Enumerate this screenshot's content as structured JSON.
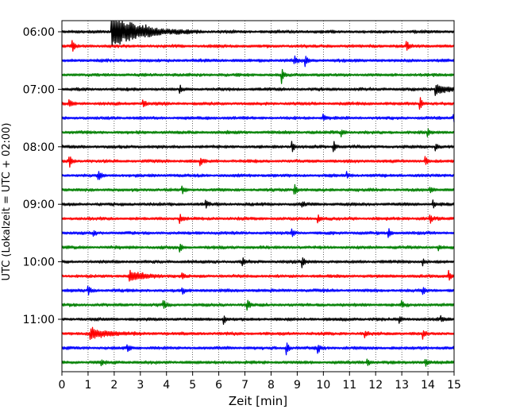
{
  "chart_data": {
    "type": "line",
    "title": "",
    "xlabel": "Zeit  [min]",
    "ylabel": "UTC (Lokalzeit = UTC + 02:00)",
    "xlim": [
      0,
      15
    ],
    "x_ticks": [
      0,
      1,
      2,
      3,
      4,
      5,
      6,
      7,
      8,
      9,
      10,
      11,
      12,
      13,
      14,
      15
    ],
    "y_tick_labels": [
      "06:00",
      "07:00",
      "08:00",
      "09:00",
      "10:00",
      "11:00"
    ],
    "grid": "vertical dotted",
    "trace_color_cycle": [
      "#000000",
      "#ff0000",
      "#0000ff",
      "#008000"
    ],
    "trace_interval_min": 15,
    "trace_count": 24,
    "series": [
      {
        "trace_start": "06:00",
        "color": "#000000",
        "events": [
          {
            "t": 1.9,
            "amp": 1.0,
            "decay": 0.9
          },
          {
            "t": 3.2,
            "amp": 0.12
          }
        ]
      },
      {
        "trace_start": "06:15",
        "color": "#ff0000",
        "events": [
          {
            "t": 0.4,
            "amp": 0.35
          },
          {
            "t": 13.2,
            "amp": 0.3
          }
        ]
      },
      {
        "trace_start": "06:30",
        "color": "#0000ff",
        "events": [
          {
            "t": 8.9,
            "amp": 0.25
          },
          {
            "t": 9.3,
            "amp": 0.3
          }
        ]
      },
      {
        "trace_start": "06:45",
        "color": "#008000",
        "events": [
          {
            "t": 8.4,
            "amp": 0.4
          }
        ]
      },
      {
        "trace_start": "07:00",
        "color": "#000000",
        "events": [
          {
            "t": 4.5,
            "amp": 0.25
          },
          {
            "t": 14.3,
            "amp": 0.3,
            "decay": 0.4
          }
        ]
      },
      {
        "trace_start": "07:15",
        "color": "#ff0000",
        "events": [
          {
            "t": 0.3,
            "amp": 0.2
          },
          {
            "t": 3.1,
            "amp": 0.3
          },
          {
            "t": 13.7,
            "amp": 0.35
          }
        ]
      },
      {
        "trace_start": "07:30",
        "color": "#0000ff",
        "events": [
          {
            "t": 10.0,
            "amp": 0.22
          },
          {
            "t": 15.0,
            "amp": 0.2
          }
        ]
      },
      {
        "trace_start": "07:45",
        "color": "#008000",
        "events": [
          {
            "t": 10.7,
            "amp": 0.2
          },
          {
            "t": 14.0,
            "amp": 0.18
          }
        ]
      },
      {
        "trace_start": "08:00",
        "color": "#000000",
        "events": [
          {
            "t": 8.8,
            "amp": 0.32
          },
          {
            "t": 10.4,
            "amp": 0.33
          },
          {
            "t": 14.3,
            "amp": 0.18
          }
        ]
      },
      {
        "trace_start": "08:15",
        "color": "#ff0000",
        "events": [
          {
            "t": 0.3,
            "amp": 0.28
          },
          {
            "t": 5.3,
            "amp": 0.25
          },
          {
            "t": 13.9,
            "amp": 0.25
          }
        ]
      },
      {
        "trace_start": "08:30",
        "color": "#0000ff",
        "events": [
          {
            "t": 1.4,
            "amp": 0.28
          },
          {
            "t": 10.9,
            "amp": 0.18
          }
        ]
      },
      {
        "trace_start": "08:45",
        "color": "#008000",
        "events": [
          {
            "t": 4.6,
            "amp": 0.22
          },
          {
            "t": 8.9,
            "amp": 0.35
          },
          {
            "t": 14.1,
            "amp": 0.2
          }
        ]
      },
      {
        "trace_start": "09:00",
        "color": "#000000",
        "events": [
          {
            "t": 5.5,
            "amp": 0.25
          },
          {
            "t": 9.2,
            "amp": 0.22
          },
          {
            "t": 14.2,
            "amp": 0.2
          }
        ]
      },
      {
        "trace_start": "09:15",
        "color": "#ff0000",
        "events": [
          {
            "t": 4.5,
            "amp": 0.3
          },
          {
            "t": 9.8,
            "amp": 0.2
          },
          {
            "t": 14.1,
            "amp": 0.18
          }
        ]
      },
      {
        "trace_start": "09:30",
        "color": "#0000ff",
        "events": [
          {
            "t": 1.2,
            "amp": 0.2
          },
          {
            "t": 8.8,
            "amp": 0.25
          },
          {
            "t": 12.5,
            "amp": 0.28
          }
        ]
      },
      {
        "trace_start": "09:45",
        "color": "#008000",
        "events": [
          {
            "t": 4.5,
            "amp": 0.28
          },
          {
            "t": 14.4,
            "amp": 0.2
          }
        ]
      },
      {
        "trace_start": "10:00",
        "color": "#000000",
        "events": [
          {
            "t": 6.9,
            "amp": 0.3
          },
          {
            "t": 9.2,
            "amp": 0.28
          },
          {
            "t": 13.8,
            "amp": 0.22
          }
        ]
      },
      {
        "trace_start": "10:15",
        "color": "#ff0000",
        "events": [
          {
            "t": 2.6,
            "amp": 0.3,
            "decay": 0.5
          },
          {
            "t": 4.6,
            "amp": 0.2
          },
          {
            "t": 14.8,
            "amp": 0.3
          }
        ]
      },
      {
        "trace_start": "10:30",
        "color": "#0000ff",
        "events": [
          {
            "t": 1.0,
            "amp": 0.25
          },
          {
            "t": 4.6,
            "amp": 0.2
          },
          {
            "t": 13.8,
            "amp": 0.28
          }
        ]
      },
      {
        "trace_start": "10:45",
        "color": "#008000",
        "events": [
          {
            "t": 3.9,
            "amp": 0.22
          },
          {
            "t": 7.1,
            "amp": 0.3
          },
          {
            "t": 13.0,
            "amp": 0.22
          }
        ]
      },
      {
        "trace_start": "11:00",
        "color": "#000000",
        "events": [
          {
            "t": 6.2,
            "amp": 0.28
          },
          {
            "t": 12.9,
            "amp": 0.25
          },
          {
            "t": 14.5,
            "amp": 0.15
          }
        ]
      },
      {
        "trace_start": "11:15",
        "color": "#ff0000",
        "events": [
          {
            "t": 1.1,
            "amp": 0.35,
            "decay": 0.5
          },
          {
            "t": 11.6,
            "amp": 0.2
          },
          {
            "t": 13.8,
            "amp": 0.3
          }
        ]
      },
      {
        "trace_start": "11:30",
        "color": "#0000ff",
        "events": [
          {
            "t": 2.5,
            "amp": 0.18
          },
          {
            "t": 8.6,
            "amp": 0.35
          },
          {
            "t": 9.8,
            "amp": 0.25
          }
        ]
      },
      {
        "trace_start": "11:45",
        "color": "#008000",
        "events": [
          {
            "t": 1.5,
            "amp": 0.2
          },
          {
            "t": 11.7,
            "amp": 0.18
          },
          {
            "t": 13.9,
            "amp": 0.25
          }
        ]
      }
    ]
  }
}
